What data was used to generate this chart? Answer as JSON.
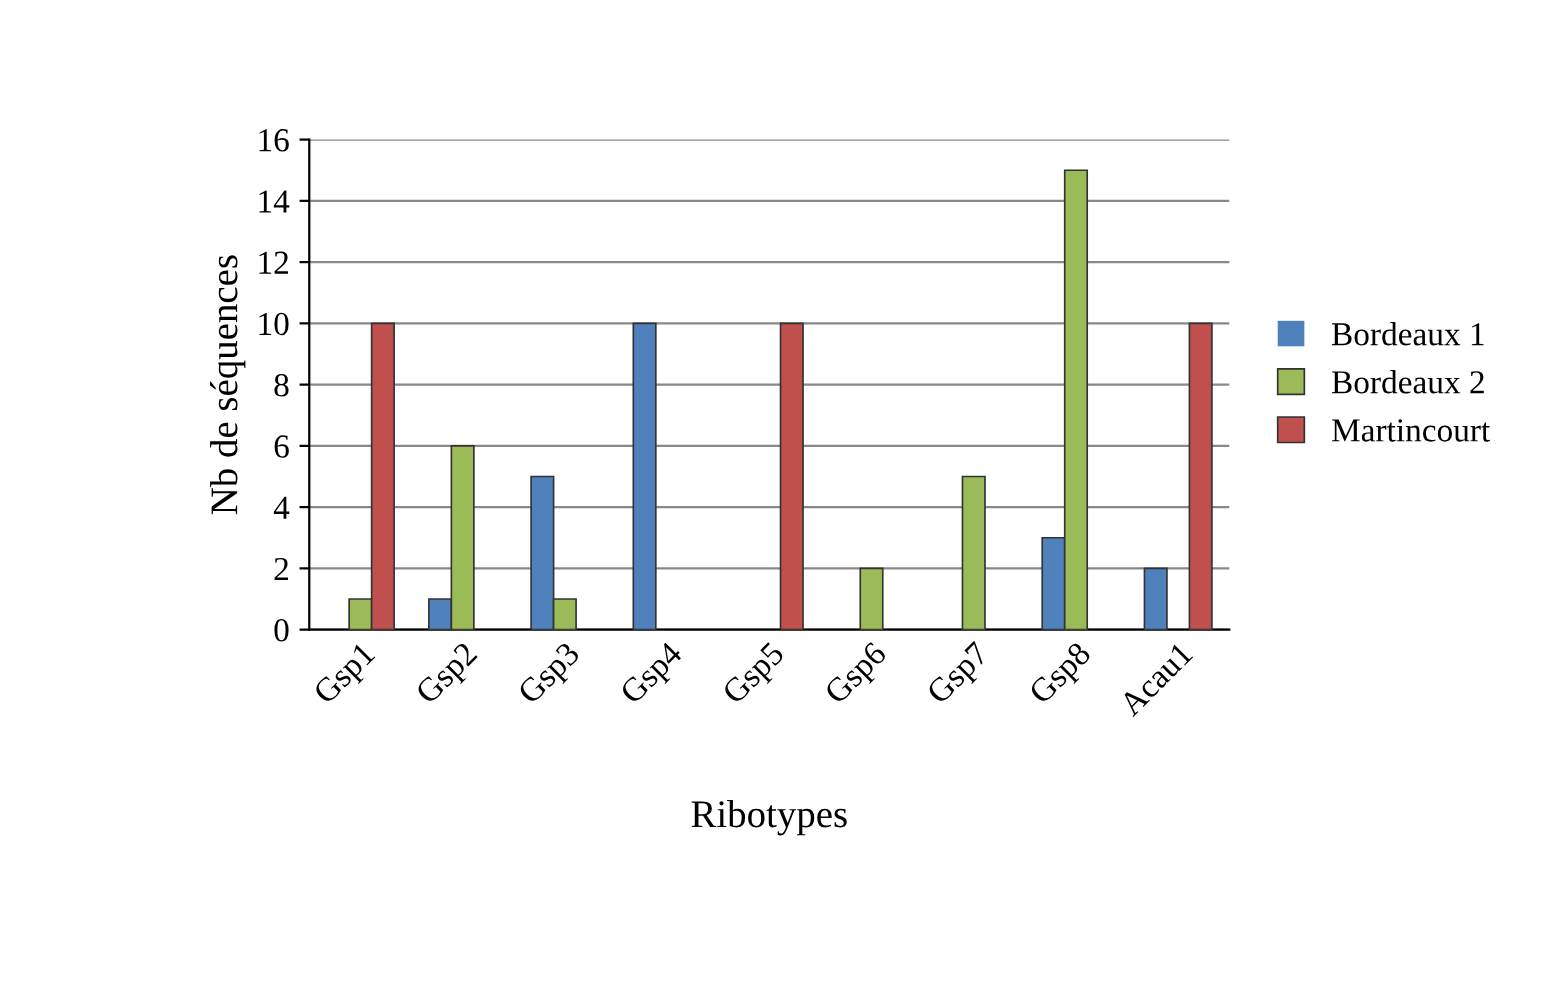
{
  "chart_data": {
    "type": "bar",
    "xlabel": "Ribotypes",
    "ylabel": "Nb de séquences",
    "categories": [
      "Gsp1",
      "Gsp2",
      "Gsp3",
      "Gsp4",
      "Gsp5",
      "Gsp6",
      "Gsp7",
      "Gsp8",
      "Acau1"
    ],
    "series": [
      {
        "name": "Bordeaux 1",
        "color": "#4f81bd",
        "values": [
          0,
          1,
          5,
          10,
          0,
          0,
          0,
          3,
          2
        ]
      },
      {
        "name": "Bordeaux 2",
        "color": "#9bbb59",
        "values": [
          1,
          6,
          1,
          0,
          0,
          2,
          5,
          15,
          0
        ]
      },
      {
        "name": "Martincourt",
        "color": "#c0504d",
        "values": [
          10,
          0,
          0,
          0,
          10,
          0,
          0,
          0,
          10
        ]
      }
    ],
    "ylim": [
      0,
      16
    ],
    "yticks": [
      0,
      2,
      4,
      6,
      8,
      10,
      12,
      14,
      16
    ],
    "grid": "y",
    "legend": "right"
  }
}
